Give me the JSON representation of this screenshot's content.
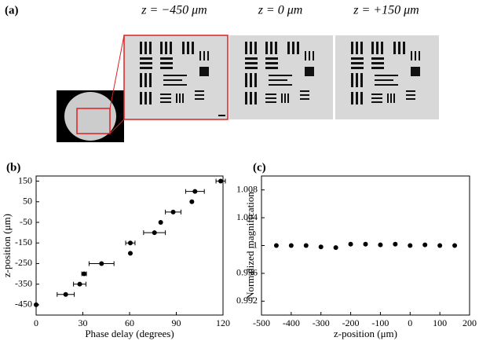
{
  "panel_a": {
    "label": "(a)",
    "images": [
      "z = −450 μm",
      "z = 0 μm",
      "z = +150 μm"
    ]
  },
  "chart_data": [
    {
      "type": "scatter",
      "panel": "(b)",
      "xlabel": "Phase delay (degrees)",
      "ylabel": "z-position (μm)",
      "x": [
        0,
        19,
        28,
        30.8,
        42,
        60.5,
        60.5,
        76,
        80,
        88,
        100,
        102,
        118.5
      ],
      "xerr": [
        null,
        5.5,
        4,
        1.5,
        8,
        null,
        3,
        7,
        null,
        5,
        null,
        6,
        3
      ],
      "values": [
        -450,
        -400,
        -350,
        -300,
        -250,
        -200,
        -150,
        -100,
        -50,
        0,
        50,
        100,
        150
      ],
      "color": "#000000",
      "xlim": [
        0,
        120
      ],
      "xticks": [
        0,
        30,
        60,
        90,
        120
      ],
      "ylim": [
        -500,
        175
      ],
      "yticks": [
        -450,
        -350,
        -250,
        -150,
        -50,
        50,
        150
      ]
    },
    {
      "type": "scatter",
      "panel": "(c)",
      "xlabel": "z-position (μm)",
      "ylabel": "Normalized magnification",
      "x": [
        -450,
        -400,
        -350,
        -300,
        -250,
        -200,
        -150,
        -100,
        -50,
        0,
        50,
        100,
        150
      ],
      "values": [
        1.0,
        1.0,
        1.0,
        0.9998,
        0.9997,
        1.0002,
        1.0002,
        1.0001,
        1.0002,
        1.0,
        1.0001,
        1.0,
        1.0
      ],
      "color": "#000000",
      "xlim": [
        -500,
        200
      ],
      "xticks": [
        -500,
        -400,
        -300,
        -200,
        -100,
        0,
        100,
        200
      ],
      "ylim": [
        0.99,
        1.01
      ],
      "yticks": [
        0.992,
        0.996,
        1,
        1.004,
        1.008
      ]
    }
  ]
}
